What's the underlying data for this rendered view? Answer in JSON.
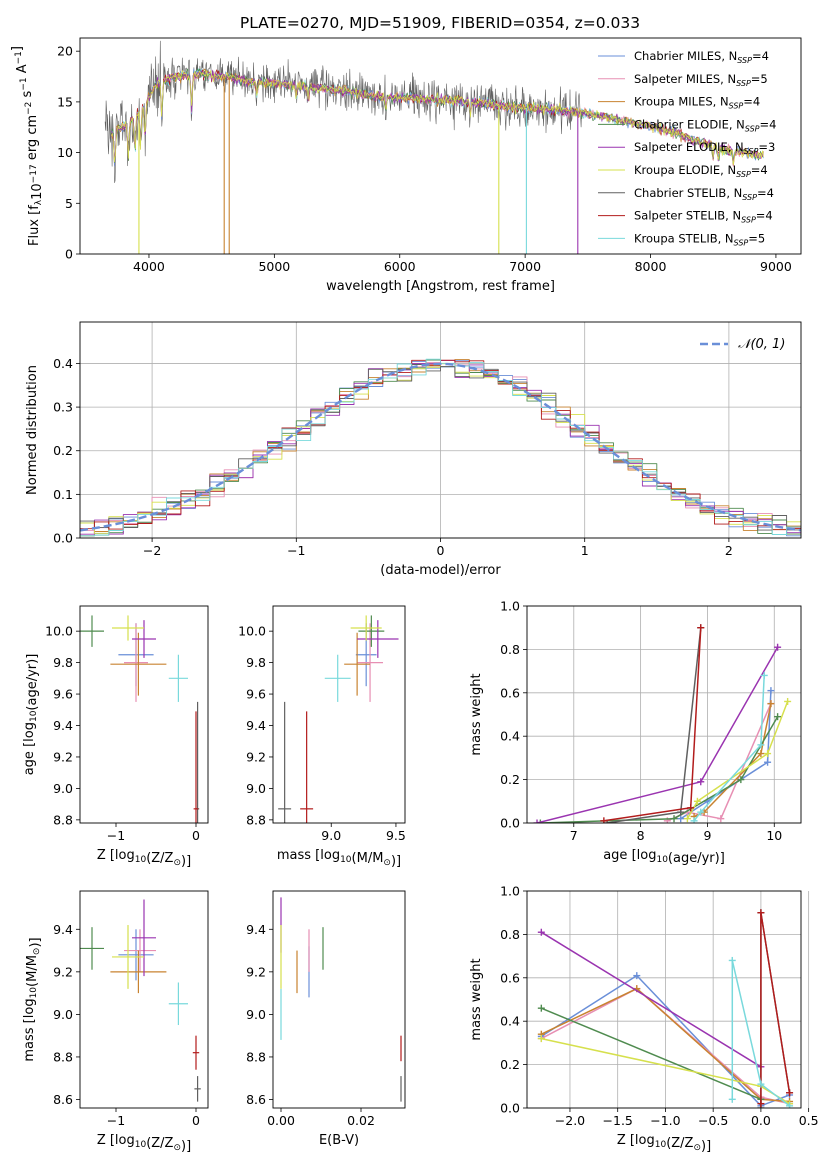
{
  "figure": {
    "title": "PLATE=0270, MJD=51909, FIBERID=0354, z=0.033"
  },
  "colors": {
    "series": [
      "#6a8fd8",
      "#e78fb3",
      "#c88330",
      "#4f8b4f",
      "#9a34b0",
      "#d6e04d",
      "#606060",
      "#b21c1c",
      "#79d9dc"
    ],
    "gaussian": "#6a8fd8",
    "grid": "#b0b0b0"
  },
  "chart_data": [
    {
      "id": "spectrum",
      "type": "line",
      "xlabel": "wavelength [Angstrom, rest frame]",
      "ylabel": "Flux [f_λ10^-17 erg cm^-2 s^-1 A^-1]",
      "ylabel_parts": [
        "Flux [f",
        "λ",
        "10",
        "−17",
        " erg cm",
        "−2",
        " s",
        "−1",
        " A",
        "−1",
        "]"
      ],
      "xlim": [
        3450,
        9200
      ],
      "ylim": [
        0,
        21.3
      ],
      "xticks": [
        4000,
        5000,
        6000,
        7000,
        8000,
        9000
      ],
      "yticks": [
        0,
        5,
        10,
        15,
        20
      ],
      "grid": false,
      "legend_position": "top-right",
      "continuum": {
        "x": [
          3700,
          3850,
          3950,
          4050,
          4200,
          4400,
          4600,
          4800,
          5000,
          5200,
          5400,
          5600,
          5800,
          6000,
          6200,
          6400,
          6600,
          6800,
          7000,
          7200,
          7400,
          7600,
          7800,
          8000,
          8200,
          8400,
          8600,
          8850
        ],
        "y": [
          12.0,
          13.0,
          14.5,
          16.6,
          17.5,
          17.8,
          17.5,
          17.0,
          16.8,
          16.6,
          16.3,
          16.0,
          15.6,
          15.4,
          15.3,
          15.2,
          15.0,
          14.6,
          14.4,
          14.3,
          14.0,
          13.6,
          13.1,
          12.6,
          11.9,
          11.0,
          10.3,
          9.8
        ]
      },
      "data_x_range": [
        3650,
        7450
      ],
      "series": [
        {
          "label": "Chabrier MILES, N",
          "sub": "SSP",
          "n": "=4"
        },
        {
          "label": "Salpeter MILES, N",
          "sub": "SSP",
          "n": "=5"
        },
        {
          "label": "Kroupa MILES, N",
          "sub": "SSP",
          "n": "=4"
        },
        {
          "label": "Chabrier ELODIE, N",
          "sub": "SSP",
          "n": "=4"
        },
        {
          "label": "Salpeter ELODIE, N",
          "sub": "SSP",
          "n": "=3"
        },
        {
          "label": "Kroupa ELODIE, N",
          "sub": "SSP",
          "n": "=4"
        },
        {
          "label": "Chabrier STELIB, N",
          "sub": "SSP",
          "n": "=4"
        },
        {
          "label": "Salpeter STELIB, N",
          "sub": "SSP",
          "n": "=4"
        },
        {
          "label": "Kroupa STELIB, N",
          "sub": "SSP",
          "n": "=5"
        }
      ]
    },
    {
      "id": "residuals",
      "type": "line",
      "xlabel": "(data-model)/error",
      "ylabel": "Normed distribution",
      "xlim": [
        -2.5,
        2.5
      ],
      "ylim": [
        0,
        0.495
      ],
      "xticks": [
        -2,
        -1,
        0,
        1,
        2
      ],
      "yticks": [
        0.0,
        0.1,
        0.2,
        0.3,
        0.4
      ],
      "grid": true,
      "legend_position": "top-right",
      "legend_label": "𝒩(0, 1)",
      "bin_width": 0.1,
      "bins_from": -2.5,
      "bins_to": 2.5
    },
    {
      "id": "age-z",
      "type": "scatter",
      "xlabel_parts": [
        "Z [log",
        "10",
        "(Z/Z",
        "⊙",
        ")]"
      ],
      "ylabel_parts": [
        "age  [log",
        "10",
        "(age/yr)]"
      ],
      "xlim": [
        -1.45,
        0.15
      ],
      "ylim": [
        8.78,
        10.16
      ],
      "xticks": [
        -1,
        0
      ],
      "yticks": [
        8.8,
        9.0,
        9.2,
        9.4,
        9.6,
        9.8,
        10.0
      ],
      "grid": false,
      "points": [
        {
          "s": 0,
          "x": -0.75,
          "y": 9.85,
          "xerr": 0.22,
          "yerr": 0.2
        },
        {
          "s": 1,
          "x": -0.75,
          "y": 9.8,
          "xerr": 0.15,
          "yerr": 0.25
        },
        {
          "s": 2,
          "x": -0.72,
          "y": 9.79,
          "xerr": 0.35,
          "yerr": 0.2
        },
        {
          "s": 3,
          "x": -1.3,
          "y": 10.0,
          "xerr": 0.15,
          "yerr": 0.1
        },
        {
          "s": 4,
          "x": -0.65,
          "y": 9.95,
          "xerr": 0.15,
          "yerr": 0.12
        },
        {
          "s": 5,
          "x": -0.85,
          "y": 10.02,
          "xerr": 0.2,
          "yerr": 0.08
        },
        {
          "s": 6,
          "x": 0.02,
          "y": 8.87,
          "xerr": 0.02,
          "yerr": 0.68
        },
        {
          "s": 7,
          "x": 0.0,
          "y": 8.87,
          "xerr": 0.03,
          "yerr": 0.62
        },
        {
          "s": 8,
          "x": -0.22,
          "y": 9.7,
          "xerr": 0.12,
          "yerr": 0.15
        }
      ]
    },
    {
      "id": "age-mass",
      "type": "scatter",
      "xlabel_parts": [
        "mass [log",
        "10",
        "(M/M",
        "⊙",
        ")]"
      ],
      "xlim": [
        8.55,
        9.57
      ],
      "ylim": [
        8.78,
        10.16
      ],
      "xticks": [
        9.0,
        9.5
      ],
      "yticks": [
        8.8,
        9.0,
        9.2,
        9.4,
        9.6,
        9.8,
        10.0
      ],
      "grid": false,
      "points": [
        {
          "s": 0,
          "x": 9.27,
          "y": 9.85,
          "xerr": 0.08,
          "yerr": 0.2
        },
        {
          "s": 1,
          "x": 9.3,
          "y": 9.8,
          "xerr": 0.1,
          "yerr": 0.25
        },
        {
          "s": 2,
          "x": 9.2,
          "y": 9.79,
          "xerr": 0.1,
          "yerr": 0.2
        },
        {
          "s": 3,
          "x": 9.31,
          "y": 10.0,
          "xerr": 0.1,
          "yerr": 0.1
        },
        {
          "s": 4,
          "x": 9.36,
          "y": 9.95,
          "xerr": 0.16,
          "yerr": 0.12
        },
        {
          "s": 5,
          "x": 9.27,
          "y": 10.02,
          "xerr": 0.12,
          "yerr": 0.08
        },
        {
          "s": 6,
          "x": 8.64,
          "y": 8.87,
          "xerr": 0.05,
          "yerr": 0.68
        },
        {
          "s": 7,
          "x": 8.81,
          "y": 8.87,
          "xerr": 0.05,
          "yerr": 0.62
        },
        {
          "s": 8,
          "x": 9.05,
          "y": 9.7,
          "xerr": 0.1,
          "yerr": 0.15
        }
      ]
    },
    {
      "id": "weight-age",
      "type": "line",
      "xlabel_parts": [
        "age  [log",
        "10",
        "(age/yr)]"
      ],
      "ylabel": "mass weight",
      "xlim": [
        6.3,
        10.4
      ],
      "ylim": [
        0,
        1.0
      ],
      "xticks": [
        7,
        8,
        9,
        10
      ],
      "yticks": [
        0.0,
        0.2,
        0.4,
        0.6,
        0.8,
        1.0
      ],
      "grid": true,
      "series": [
        {
          "s": 0,
          "x": [
            8.6,
            9.0,
            9.9,
            9.95
          ],
          "y": [
            0.02,
            0.1,
            0.28,
            0.61
          ]
        },
        {
          "s": 1,
          "x": [
            8.4,
            8.7,
            9.2,
            9.95
          ],
          "y": [
            0.01,
            0.05,
            0.02,
            0.55
          ]
        },
        {
          "s": 2,
          "x": [
            8.8,
            8.95,
            9.8,
            9.95
          ],
          "y": [
            0.03,
            0.05,
            0.32,
            0.55
          ]
        },
        {
          "s": 3,
          "x": [
            6.5,
            8.5,
            9.5,
            10.05
          ],
          "y": [
            0.0,
            0.02,
            0.2,
            0.49
          ]
        },
        {
          "s": 4,
          "x": [
            6.45,
            8.9,
            10.05
          ],
          "y": [
            0.0,
            0.19,
            0.81
          ]
        },
        {
          "s": 5,
          "x": [
            8.7,
            8.85,
            9.9,
            10.2
          ],
          "y": [
            0.02,
            0.1,
            0.32,
            0.56
          ]
        },
        {
          "s": 6,
          "x": [
            7.5,
            8.6,
            8.9
          ],
          "y": [
            0.0,
            0.05,
            0.9
          ]
        },
        {
          "s": 7,
          "x": [
            7.45,
            8.75,
            8.9
          ],
          "y": [
            0.01,
            0.07,
            0.9
          ]
        },
        {
          "s": 8,
          "x": [
            8.8,
            8.9,
            9.8,
            9.85
          ],
          "y": [
            0.01,
            0.05,
            0.36,
            0.68
          ]
        }
      ]
    },
    {
      "id": "mass-z",
      "type": "scatter",
      "xlabel_parts": [
        "Z [log",
        "10",
        "(Z/Z",
        "⊙",
        ")]"
      ],
      "ylabel_parts": [
        "mass [log",
        "10",
        "(M/M",
        "⊙",
        ")]"
      ],
      "xlim": [
        -1.45,
        0.15
      ],
      "ylim": [
        8.56,
        9.58
      ],
      "xticks": [
        -1,
        0
      ],
      "yticks": [
        8.6,
        8.8,
        9.0,
        9.2,
        9.4
      ],
      "grid": false,
      "points": [
        {
          "s": 0,
          "x": -0.75,
          "y": 9.28,
          "xerr": 0.22,
          "yerr": 0.12
        },
        {
          "s": 1,
          "x": -0.7,
          "y": 9.3,
          "xerr": 0.2,
          "yerr": 0.1
        },
        {
          "s": 2,
          "x": -0.72,
          "y": 9.2,
          "xerr": 0.35,
          "yerr": 0.1
        },
        {
          "s": 3,
          "x": -1.3,
          "y": 9.31,
          "xerr": 0.15,
          "yerr": 0.1
        },
        {
          "s": 4,
          "x": -0.65,
          "y": 9.36,
          "xerr": 0.15,
          "yerr": 0.18
        },
        {
          "s": 5,
          "x": -0.85,
          "y": 9.27,
          "xerr": 0.2,
          "yerr": 0.15
        },
        {
          "s": 6,
          "x": 0.02,
          "y": 8.65,
          "xerr": 0.04,
          "yerr": 0.06
        },
        {
          "s": 7,
          "x": 0.0,
          "y": 8.82,
          "xerr": 0.04,
          "yerr": 0.08
        },
        {
          "s": 8,
          "x": -0.22,
          "y": 9.05,
          "xerr": 0.12,
          "yerr": 0.1
        }
      ]
    },
    {
      "id": "mass-ebv",
      "type": "scatter",
      "xlabel": "E(B-V)",
      "xlim": [
        -0.002,
        0.031
      ],
      "ylim": [
        8.56,
        9.58
      ],
      "xticks": [
        0.0,
        0.02
      ],
      "yticks": [
        8.6,
        8.8,
        9.0,
        9.2,
        9.4
      ],
      "grid": false,
      "points": [
        {
          "s": 0,
          "x": 0.007,
          "y": 9.2,
          "yerr": 0.12
        },
        {
          "s": 1,
          "x": 0.007,
          "y": 9.3,
          "yerr": 0.1
        },
        {
          "s": 2,
          "x": 0.004,
          "y": 9.2,
          "yerr": 0.1
        },
        {
          "s": 3,
          "x": 0.0105,
          "y": 9.31,
          "yerr": 0.1
        },
        {
          "s": 4,
          "x": 0.0,
          "y": 9.42,
          "yerr": 0.13
        },
        {
          "s": 5,
          "x": 0.0,
          "y": 9.27,
          "yerr": 0.15
        },
        {
          "s": 6,
          "x": 0.03,
          "y": 8.65,
          "yerr": 0.06
        },
        {
          "s": 7,
          "x": 0.03,
          "y": 8.84,
          "yerr": 0.06
        },
        {
          "s": 8,
          "x": 0.0,
          "y": 9.0,
          "yerr": 0.12
        }
      ]
    },
    {
      "id": "weight-z",
      "type": "line",
      "xlabel_parts": [
        "Z [log",
        "10",
        "(Z/Z",
        "⊙",
        ")]"
      ],
      "ylabel": "mass weight",
      "xlim": [
        -2.45,
        0.42
      ],
      "ylim": [
        0,
        1.0
      ],
      "xticks": [
        -2.0,
        -1.5,
        -1.0,
        -0.5,
        0.0,
        0.5
      ],
      "xtick_labels": [
        "−2.0",
        "−1.5",
        "−1.0",
        "−0.5",
        "0.0",
        "0.5"
      ],
      "yticks": [
        0.0,
        0.2,
        0.4,
        0.6,
        0.8,
        1.0
      ],
      "grid": true,
      "series": [
        {
          "s": 0,
          "x": [
            -2.3,
            -1.3,
            0.0,
            0.3
          ],
          "y": [
            0.33,
            0.61,
            0.01,
            0.06
          ]
        },
        {
          "s": 1,
          "x": [
            -2.3,
            -1.3,
            0.0,
            0.3
          ],
          "y": [
            0.32,
            0.55,
            0.05,
            0.02
          ]
        },
        {
          "s": 2,
          "x": [
            -2.3,
            -1.3,
            0.0,
            0.3
          ],
          "y": [
            0.34,
            0.55,
            0.04,
            0.03
          ]
        },
        {
          "s": 3,
          "x": [
            -2.3,
            0.0
          ],
          "y": [
            0.46,
            0.04
          ]
        },
        {
          "s": 4,
          "x": [
            -2.3,
            0.0
          ],
          "y": [
            0.81,
            0.19
          ]
        },
        {
          "s": 5,
          "x": [
            -2.3,
            0.0,
            0.3
          ],
          "y": [
            0.32,
            0.1,
            0.02
          ]
        },
        {
          "s": 6,
          "x": [
            0.0,
            0.0,
            0.3
          ],
          "y": [
            0.0,
            0.9,
            0.07
          ]
        },
        {
          "s": 7,
          "x": [
            0.0,
            0.0,
            0.3
          ],
          "y": [
            0.02,
            0.9,
            0.07
          ]
        },
        {
          "s": 8,
          "x": [
            -0.3,
            -0.3,
            0.0,
            0.3
          ],
          "y": [
            0.04,
            0.68,
            0.11,
            0.01
          ]
        }
      ]
    }
  ]
}
